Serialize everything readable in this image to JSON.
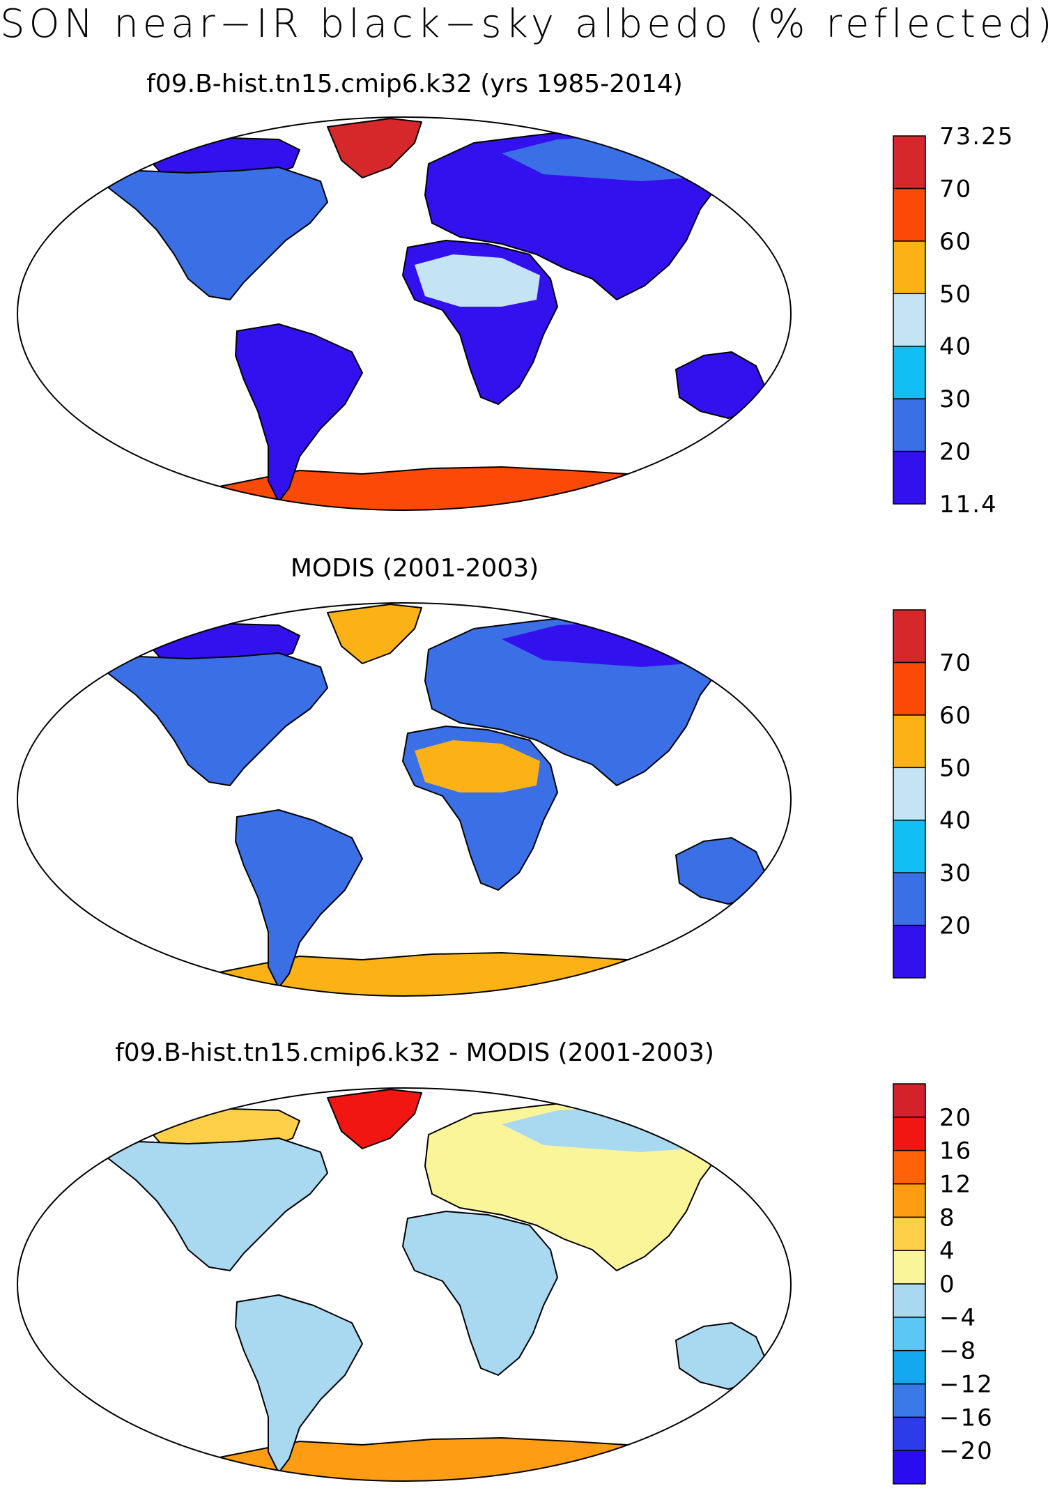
{
  "title": "SON near−IR black−sky albedo (% reflected)",
  "panels": [
    {
      "title": "f09.B-hist.tn15.cmip6.k32 (yrs 1985-2014)",
      "colorbar": {
        "colors": [
          "#3311ee",
          "#3a6fe6",
          "#12bff5",
          "#c5e4f3",
          "#fbb217",
          "#fb4a07",
          "#d6272b"
        ],
        "labels": [
          "11.4",
          "20",
          "30",
          "40",
          "50",
          "60",
          "70",
          "73.25"
        ],
        "label_mode": "edges"
      },
      "regions": {
        "north_america": "#3a6fe6",
        "canada_arctic": "#3311ee",
        "greenland": "#d6272b",
        "south_america": "#3311ee",
        "africa": "#3311ee",
        "sahara": "#c5e4f3",
        "eurasia": "#3311ee",
        "siberia": "#3a6fe6",
        "australia": "#3311ee",
        "antarctica": "#fb4a07"
      }
    },
    {
      "title": "MODIS (2001-2003)",
      "colorbar": {
        "colors": [
          "#3311ee",
          "#3a6fe6",
          "#12bff5",
          "#c5e4f3",
          "#fbb217",
          "#fb4a07",
          "#d6272b"
        ],
        "labels": [
          "20",
          "30",
          "40",
          "50",
          "60",
          "70"
        ],
        "label_mode": "inner"
      },
      "regions": {
        "north_america": "#3a6fe6",
        "canada_arctic": "#3311ee",
        "greenland": "#fbb217",
        "south_america": "#3a6fe6",
        "africa": "#3a6fe6",
        "sahara": "#fbb217",
        "eurasia": "#3a6fe6",
        "siberia": "#3311ee",
        "australia": "#3a6fe6",
        "antarctica": "#fbb217"
      }
    },
    {
      "title": "f09.B-hist.tn15.cmip6.k32 - MODIS (2001-2003)",
      "colorbar": {
        "colors": [
          "#2a0cf0",
          "#2b3ce8",
          "#3b78e8",
          "#14a8f0",
          "#5cc6f5",
          "#a9d8f1",
          "#fbf59a",
          "#fed04a",
          "#fe9d13",
          "#fe6309",
          "#f21612",
          "#d3222a"
        ],
        "labels": [
          "−20",
          "−16",
          "−12",
          "−8",
          "−4",
          "0",
          "4",
          "8",
          "12",
          "16",
          "20"
        ],
        "label_mode": "inner"
      },
      "regions": {
        "north_america": "#a9d8f1",
        "canada_arctic": "#fed04a",
        "greenland": "#f21612",
        "south_america": "#a9d8f1",
        "africa": "#a9d8f1",
        "sahara": "#a9d8f1",
        "eurasia": "#fbf59a",
        "siberia": "#a9d8f1",
        "australia": "#a9d8f1",
        "antarctica": "#fe9d13"
      }
    }
  ]
}
